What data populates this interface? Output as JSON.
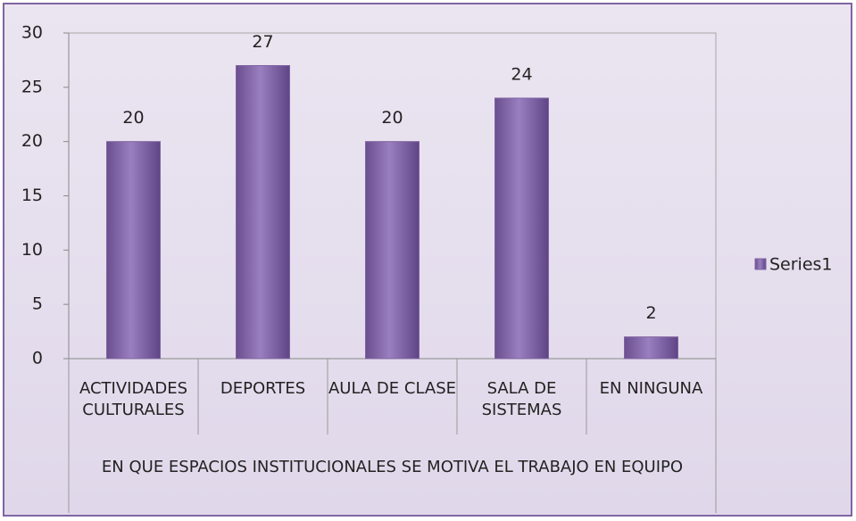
{
  "chart_data": {
    "type": "bar",
    "categories": [
      "ACTIVIDADES CULTURALES",
      "DEPORTES",
      "AULA DE CLASE",
      "SALA DE SISTEMAS",
      "EN NINGUNA"
    ],
    "series": [
      {
        "name": "Series1",
        "color": "#8064a2",
        "values": [
          20,
          27,
          20,
          24,
          2
        ]
      }
    ],
    "ylim": [
      0,
      30
    ],
    "yticks": [
      0,
      5,
      10,
      15,
      20,
      25,
      30
    ],
    "x_axis_label": "EN QUE ESPACIOS INSTITUCIONALES SE MOTIVA EL TRABAJO EN EQUIPO",
    "legend": "right",
    "data_labels": true
  }
}
